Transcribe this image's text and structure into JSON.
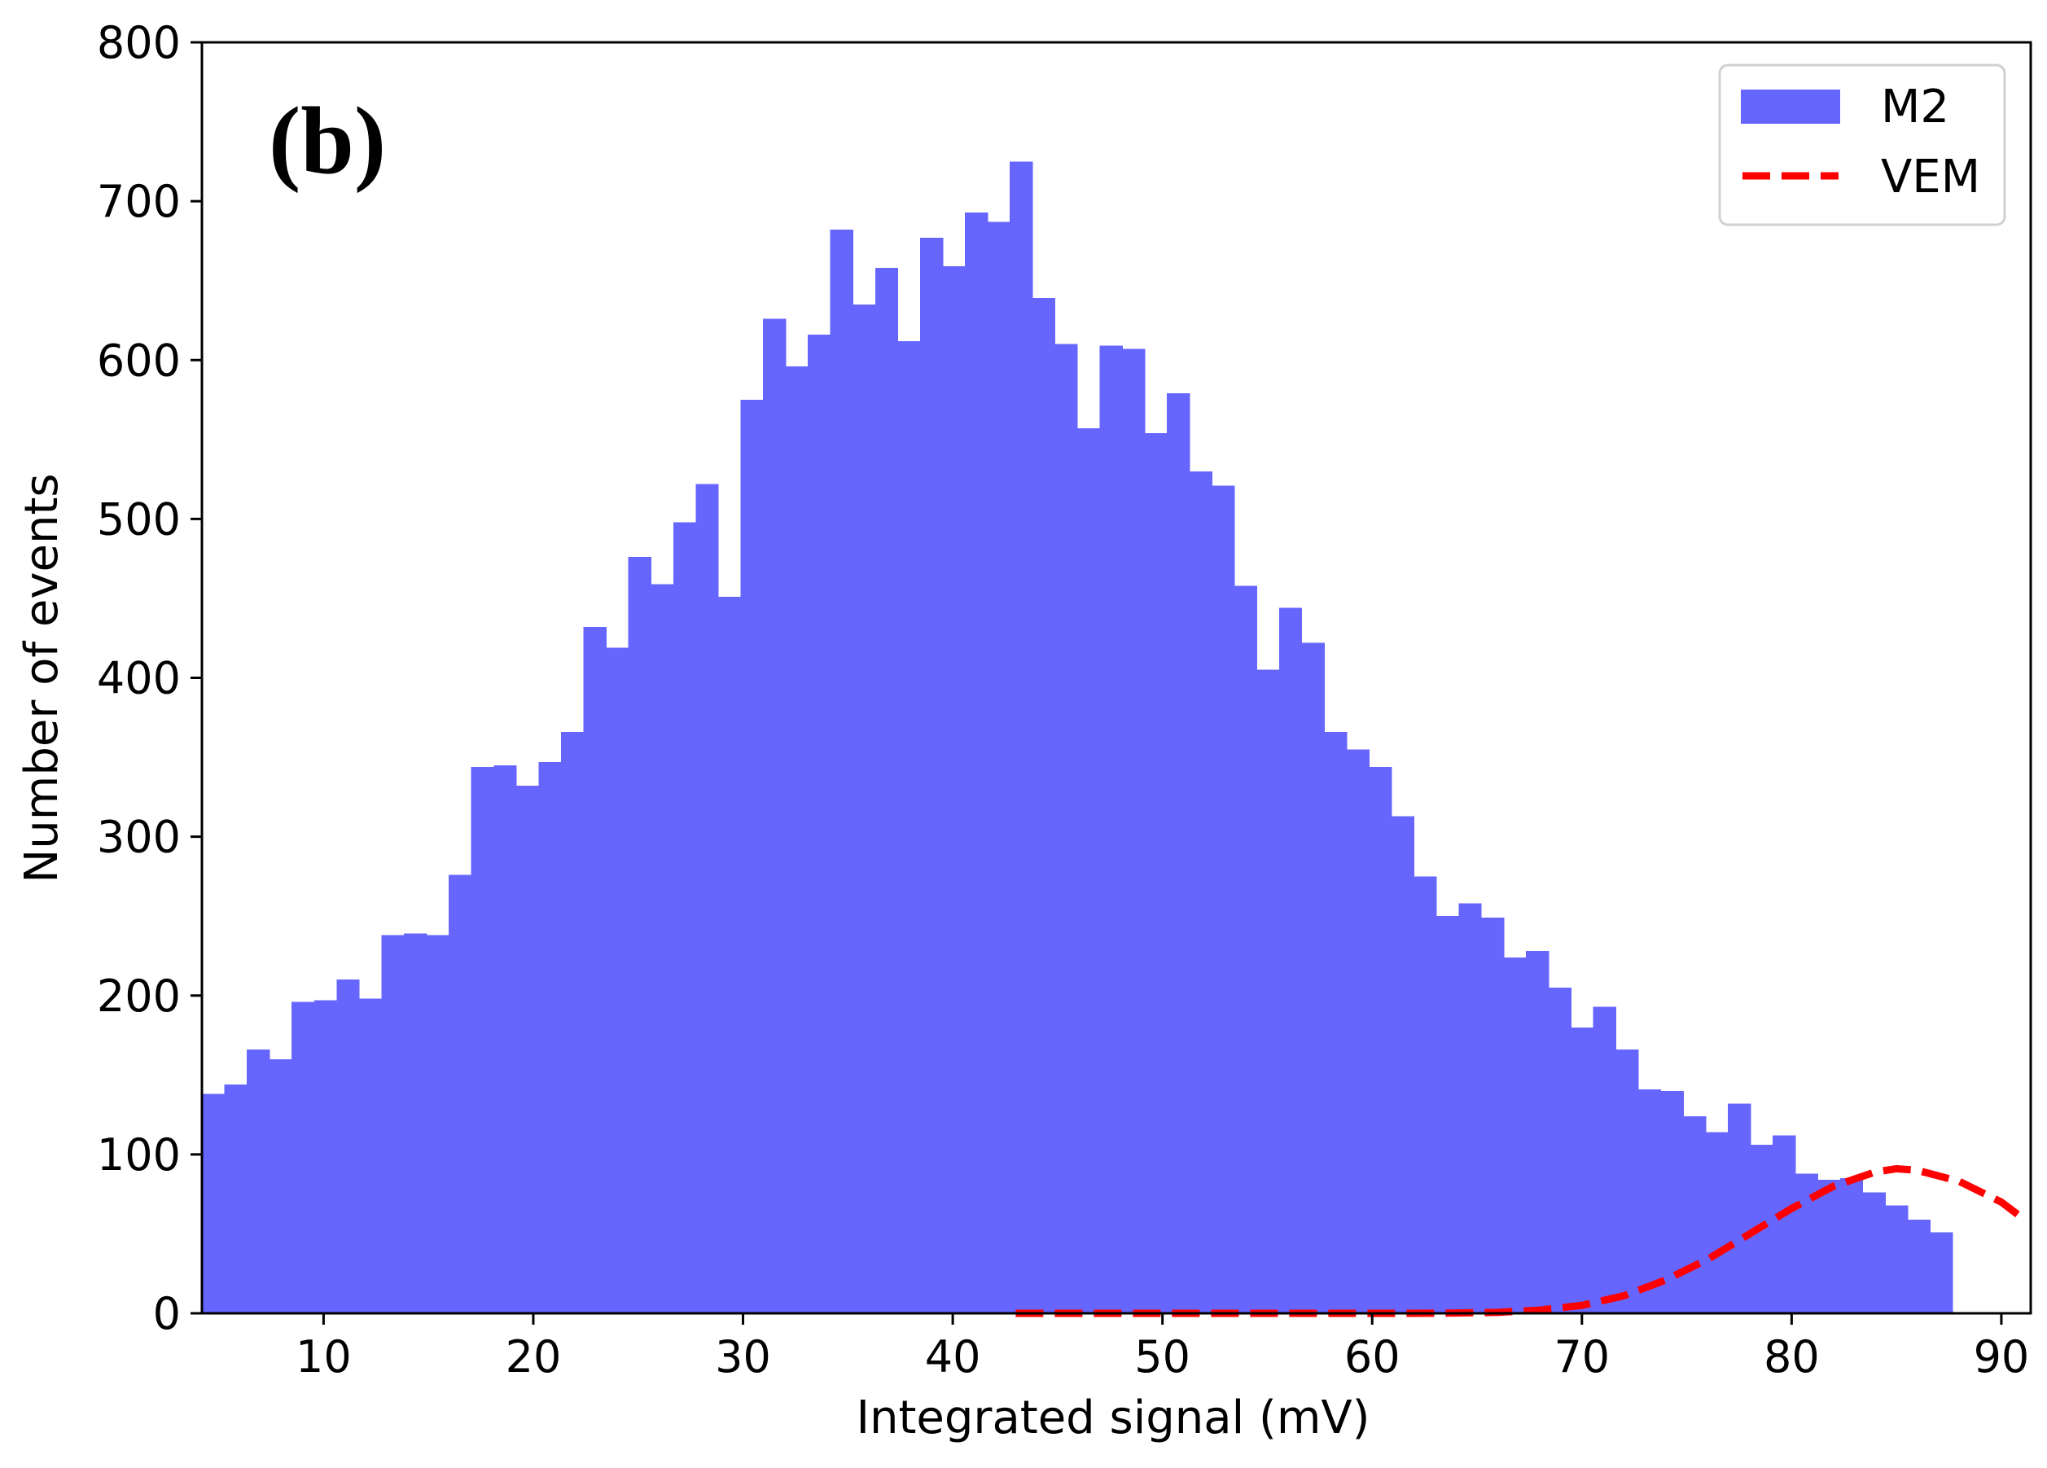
{
  "chart_data": {
    "type": "bar",
    "subtype": "histogram",
    "panel_label": "(b)",
    "title": "",
    "xlabel": "Integrated signal (mV)",
    "ylabel": "Number of events",
    "xlim": [
      4.2,
      91.4
    ],
    "ylim": [
      0,
      800
    ],
    "xticks": [
      10,
      20,
      30,
      40,
      50,
      60,
      70,
      80,
      90
    ],
    "yticks": [
      0,
      100,
      200,
      300,
      400,
      500,
      600,
      700,
      800
    ],
    "bin_width": 1.07,
    "grid": false,
    "legend_position": "top-right",
    "series": [
      {
        "name": "M2",
        "kind": "histogram",
        "color": "#6666ff",
        "bin_start": 4.2,
        "values": [
          138,
          144,
          166,
          160,
          196,
          197,
          210,
          198,
          238,
          239,
          238,
          276,
          344,
          345,
          332,
          347,
          366,
          432,
          419,
          476,
          459,
          498,
          522,
          451,
          575,
          626,
          596,
          616,
          682,
          635,
          658,
          612,
          677,
          659,
          693,
          687,
          725,
          639,
          610,
          557,
          609,
          607,
          554,
          579,
          530,
          521,
          458,
          405,
          444,
          422,
          366,
          355,
          344,
          313,
          275,
          250,
          258,
          249,
          224,
          228,
          205,
          180,
          193,
          166,
          141,
          140,
          124,
          114,
          132,
          106,
          112,
          88,
          84,
          85,
          76,
          68,
          59,
          51
        ]
      },
      {
        "name": "VEM",
        "kind": "line",
        "style": "dashed",
        "color": "#ff0000",
        "x": [
          43,
          46,
          50,
          54,
          58,
          62,
          64,
          66,
          68,
          70,
          72,
          74,
          76,
          78,
          80,
          82,
          84,
          85,
          86,
          88,
          90,
          91
        ],
        "values": [
          0,
          0,
          0,
          0,
          0,
          0,
          0.2,
          0.6,
          2,
          5,
          11,
          21,
          34,
          50,
          66,
          80,
          89,
          91,
          90,
          83,
          70,
          60
        ]
      }
    ]
  }
}
